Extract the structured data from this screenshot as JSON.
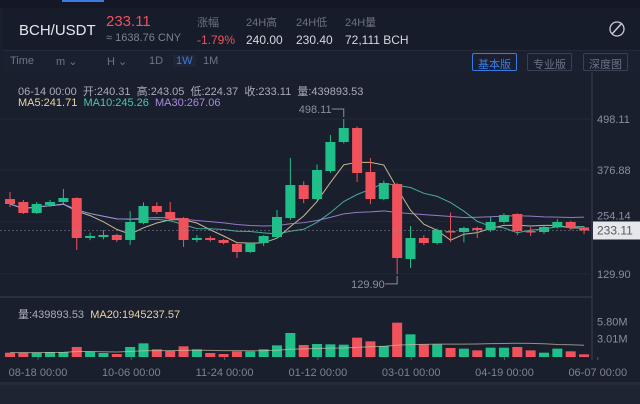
{
  "header": {
    "pair": "BCH/USDT",
    "price": "233.11",
    "cny": "≈ 1638.76 CNY",
    "stats": [
      {
        "label": "涨幅",
        "value": "-1.79%"
      },
      {
        "label": "24H高",
        "value": "240.00"
      },
      {
        "label": "24H低",
        "value": "230.40"
      },
      {
        "label": "24H量",
        "value": "72,111 BCH"
      }
    ],
    "icon": "brush-icon"
  },
  "toolbar": {
    "time": "Time",
    "minute": "m",
    "hour": "H",
    "day": "1D",
    "week": "1W",
    "month": "1M",
    "active": "1W",
    "views": [
      "基本版",
      "专业版",
      "深度图"
    ],
    "active_view": "基本版"
  },
  "info": {
    "date": "06-14 00:00",
    "open": "开:240.31",
    "high": "高:243.05",
    "low": "低:224.37",
    "close": "收:233.11",
    "vol": "量:439893.53"
  },
  "ma": {
    "ma5": "MA5:241.71",
    "ma10": "MA10:245.26",
    "ma30": "MA30:267.06"
  },
  "volume_info": {
    "vol": "量:439893.53",
    "ma20": "MA20:1945237.57"
  },
  "colors": {
    "up": "#1fbf8a",
    "down": "#f0515a",
    "ma5": "#e8d3a2",
    "ma10": "#4fc3ae",
    "ma30": "#a98be0",
    "bg": "#1a1f2e"
  },
  "chart_data": {
    "type": "candlestick",
    "price_ticks": [
      "498.11",
      "376.88",
      "254.14",
      "129.90"
    ],
    "last_price": "233.11",
    "max_label": "498.11",
    "min_label": "129.90",
    "volume_ticks": [
      "5.80M",
      "3.01M"
    ],
    "x_ticks": [
      "08-18 00:00",
      "10-06 00:00",
      "11-24 00:00",
      "01-12 00:00",
      "03-01 00:00",
      "04-19 00:00",
      "06-07 00:00"
    ],
    "ohlc": [
      [
        307.9,
        324.6,
        289,
        296.1
      ],
      [
        300.8,
        305.6,
        272.3,
        274.7
      ],
      [
        274.7,
        300.8,
        272.3,
        296.1
      ],
      [
        293.7,
        305.6,
        291.3,
        300.8
      ],
      [
        300.8,
        331.7,
        296.1,
        310.3
      ],
      [
        310.3,
        312,
        186.8,
        215.3
      ],
      [
        215.3,
        228,
        210,
        220
      ],
      [
        217.6,
        234,
        212,
        222.4
      ],
      [
        222.4,
        225,
        206,
        210.5
      ],
      [
        210.5,
        279.4,
        198.6,
        253.3
      ],
      [
        250.9,
        300,
        248,
        291.3
      ],
      [
        291.3,
        300,
        272,
        277.1
      ],
      [
        277.1,
        300.8,
        258,
        260.4
      ],
      [
        262.8,
        265,
        193.9,
        210.5
      ],
      [
        210.5,
        222,
        205,
        215.3
      ],
      [
        215.3,
        220,
        206,
        210.5
      ],
      [
        210.5,
        213,
        200,
        203.4
      ],
      [
        201,
        204,
        167.7,
        182
      ],
      [
        182,
        205,
        180,
        203.4
      ],
      [
        203.4,
        222,
        196,
        220
      ],
      [
        217.6,
        281.8,
        214,
        265.2
      ],
      [
        262.8,
        405.4,
        258,
        341.2
      ],
      [
        341.2,
        350,
        298,
        307.9
      ],
      [
        307.9,
        390,
        305,
        376.9
      ],
      [
        374.5,
        460.1,
        370,
        443.4
      ],
      [
        443.4,
        498.11,
        440,
        476.7
      ],
      [
        476.7,
        480,
        348.4,
        369.7
      ],
      [
        372.1,
        405.4,
        296,
        307.9
      ],
      [
        307.9,
        352,
        305,
        346
      ],
      [
        343.6,
        346,
        129.9,
        167.7
      ],
      [
        165.4,
        243.8,
        144,
        215.3
      ],
      [
        215.3,
        222,
        198,
        203.4
      ],
      [
        203.4,
        238,
        200,
        234.3
      ],
      [
        231.9,
        276,
        205.8,
        229.5
      ],
      [
        229.5,
        242,
        205,
        239
      ],
      [
        239,
        242,
        215,
        234.3
      ],
      [
        234.3,
        265,
        230,
        253.3
      ],
      [
        253.3,
        274,
        250,
        269.9
      ],
      [
        272.3,
        274,
        222,
        231.9
      ],
      [
        231.9,
        241,
        220,
        229.5
      ],
      [
        229.5,
        245,
        225,
        241.4
      ],
      [
        241.4,
        260,
        238,
        253.3
      ],
      [
        253.3,
        256,
        234,
        239
      ],
      [
        240.31,
        243.05,
        224.37,
        233.11
      ]
    ],
    "volume_millions": [
      0.71,
      0.71,
      0.71,
      0.82,
      0.82,
      1.64,
      0.88,
      0.66,
      0.49,
      1.64,
      2.24,
      1.26,
      0.98,
      1.75,
      1.26,
      0.66,
      0.49,
      0.93,
      0.93,
      1.26,
      1.91,
      3.94,
      1.97,
      2.13,
      2.08,
      2.02,
      3.17,
      2.57,
      1.81,
      5.63,
      3.72,
      2.08,
      2.08,
      1.48,
      1.37,
      1.09,
      1.53,
      1.53,
      1.64,
      1.09,
      0.71,
      1.37,
      0.93,
      0.44
    ]
  }
}
